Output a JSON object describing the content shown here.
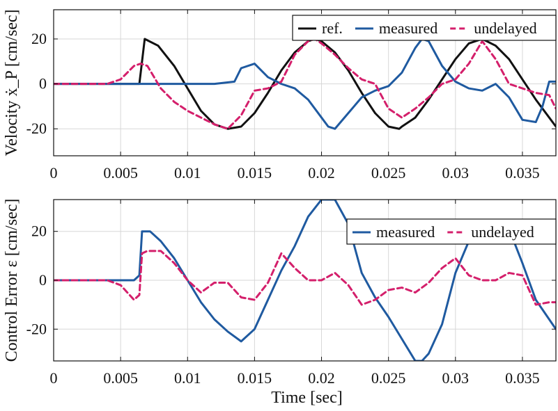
{
  "chart_data": [
    {
      "type": "line",
      "xlabel": "",
      "ylabel": "Velocity ẋ_P [cm/sec]",
      "xlim": [
        0,
        0.0375
      ],
      "ylim": [
        -32,
        33
      ],
      "x_ticks": [
        0,
        0.005,
        0.01,
        0.015,
        0.02,
        0.025,
        0.03,
        0.035
      ],
      "x_tick_labels": [
        "0",
        "0.005",
        "0.01",
        "0.015",
        "0.02",
        "0.025",
        "0.03",
        "0.035"
      ],
      "y_ticks": [
        -20,
        0,
        20
      ],
      "y_tick_labels": [
        "-20",
        "0",
        "20"
      ],
      "grid": true,
      "legend": {
        "placement": "top-right",
        "entries": [
          "ref.",
          "measured",
          "undelayed"
        ]
      },
      "series": [
        {
          "name": "ref.",
          "color": "#111111",
          "dash": "solid",
          "x": [
            0,
            0.0064,
            0.0068,
            0.0078,
            0.009,
            0.01,
            0.011,
            0.012,
            0.013,
            0.014,
            0.015,
            0.016,
            0.017,
            0.018,
            0.019,
            0.0195,
            0.02,
            0.021,
            0.022,
            0.023,
            0.024,
            0.025,
            0.0258,
            0.026,
            0.027,
            0.028,
            0.029,
            0.03,
            0.031,
            0.032,
            0.033,
            0.034,
            0.035,
            0.036,
            0.037,
            0.0375
          ],
          "y": [
            0,
            0,
            20,
            17,
            8,
            -2,
            -12,
            -18,
            -20,
            -19,
            -13,
            -4,
            6,
            14,
            19,
            20,
            19,
            14,
            6,
            -4,
            -13,
            -19,
            -20,
            -19,
            -15,
            -7,
            2,
            11,
            18,
            20,
            17,
            11,
            2,
            -7,
            -15,
            -19
          ]
        },
        {
          "name": "measured",
          "color": "#1f5aa0",
          "dash": "solid",
          "x": [
            0,
            0.01,
            0.012,
            0.0135,
            0.014,
            0.015,
            0.016,
            0.017,
            0.018,
            0.019,
            0.02,
            0.0205,
            0.021,
            0.022,
            0.023,
            0.024,
            0.025,
            0.026,
            0.027,
            0.0275,
            0.028,
            0.029,
            0.03,
            0.031,
            0.032,
            0.033,
            0.034,
            0.035,
            0.036,
            0.0365,
            0.037,
            0.0375
          ],
          "y": [
            0,
            0,
            0,
            1,
            7,
            9,
            3,
            0,
            -2,
            -7,
            -15,
            -19,
            -20,
            -13,
            -6,
            -3,
            -1,
            5,
            16,
            20,
            19,
            8,
            1,
            -2,
            -3,
            0,
            -6,
            -16,
            -17,
            -10,
            1,
            1
          ]
        },
        {
          "name": "undelayed",
          "color": "#d41f6b",
          "dash": "dashed",
          "x": [
            0,
            0.004,
            0.005,
            0.006,
            0.0065,
            0.007,
            0.008,
            0.009,
            0.01,
            0.011,
            0.012,
            0.013,
            0.014,
            0.015,
            0.016,
            0.017,
            0.018,
            0.019,
            0.0195,
            0.02,
            0.021,
            0.022,
            0.023,
            0.024,
            0.025,
            0.026,
            0.027,
            0.028,
            0.029,
            0.03,
            0.031,
            0.032,
            0.033,
            0.034,
            0.035,
            0.036,
            0.037,
            0.0375
          ],
          "y": [
            0,
            0,
            2,
            8,
            9,
            8,
            -2,
            -8,
            -12,
            -15,
            -18,
            -20,
            -14,
            -3,
            -2,
            1,
            13,
            19,
            20,
            18,
            13,
            7,
            2,
            0,
            -11,
            -15,
            -11,
            -6,
            0,
            2,
            9,
            19,
            11,
            0,
            -2,
            -4,
            -5,
            -11
          ]
        }
      ]
    },
    {
      "type": "line",
      "xlabel": "Time [sec]",
      "ylabel": "Control Error ε [cm/sec]",
      "xlim": [
        0,
        0.0375
      ],
      "ylim": [
        -33,
        33
      ],
      "x_ticks": [
        0,
        0.005,
        0.01,
        0.015,
        0.02,
        0.025,
        0.03,
        0.035
      ],
      "x_tick_labels": [
        "0",
        "0.005",
        "0.01",
        "0.015",
        "0.02",
        "0.025",
        "0.03",
        "0.035"
      ],
      "y_ticks": [
        -20,
        0,
        20
      ],
      "y_tick_labels": [
        "-20",
        "0",
        "20"
      ],
      "grid": true,
      "legend": {
        "placement": "top-right",
        "entries": [
          "measured",
          "undelayed"
        ]
      },
      "series": [
        {
          "name": "measured",
          "color": "#1f5aa0",
          "dash": "solid",
          "x": [
            0,
            0.006,
            0.0064,
            0.0066,
            0.0068,
            0.0072,
            0.008,
            0.009,
            0.01,
            0.011,
            0.012,
            0.013,
            0.014,
            0.015,
            0.016,
            0.017,
            0.018,
            0.019,
            0.02,
            0.021,
            0.022,
            0.023,
            0.024,
            0.025,
            0.026,
            0.027,
            0.0275,
            0.028,
            0.029,
            0.03,
            0.031,
            0.032,
            0.033,
            0.034,
            0.035,
            0.036,
            0.037,
            0.0375
          ],
          "y": [
            0,
            0,
            2,
            20,
            20,
            20,
            16,
            9,
            0,
            -9,
            -16,
            -21,
            -25,
            -20,
            -8,
            4,
            14,
            26,
            33,
            33,
            23,
            3,
            -7,
            -15,
            -24,
            -33,
            -33,
            -30,
            -18,
            3,
            16,
            20,
            21,
            21,
            7,
            -8,
            -16,
            -20
          ]
        },
        {
          "name": "undelayed",
          "color": "#d41f6b",
          "dash": "dashed",
          "x": [
            0,
            0.004,
            0.005,
            0.006,
            0.0064,
            0.0066,
            0.007,
            0.008,
            0.009,
            0.01,
            0.011,
            0.012,
            0.013,
            0.014,
            0.015,
            0.016,
            0.017,
            0.018,
            0.019,
            0.02,
            0.021,
            0.022,
            0.023,
            0.024,
            0.025,
            0.026,
            0.027,
            0.028,
            0.029,
            0.03,
            0.031,
            0.032,
            0.033,
            0.034,
            0.035,
            0.036,
            0.037,
            0.0375
          ],
          "y": [
            0,
            0,
            -2,
            -8,
            -6,
            11,
            12,
            12,
            7,
            0,
            -5,
            -1,
            -1,
            -7,
            -8,
            -1,
            11,
            5,
            0,
            0,
            3,
            -2,
            -10,
            -8,
            -4,
            -3,
            -5,
            -1,
            5,
            9,
            2,
            0,
            0,
            3,
            2,
            -10,
            -9,
            -9
          ]
        }
      ]
    }
  ]
}
